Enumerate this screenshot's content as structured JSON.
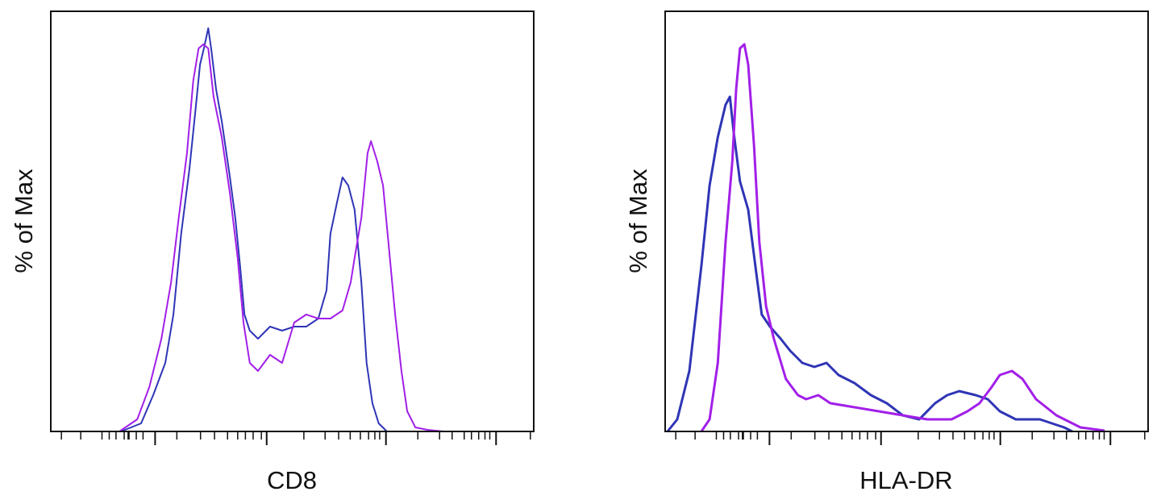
{
  "colors": {
    "blue": "#2f35b5",
    "purple": "#a21fe8",
    "axis": "#111111"
  },
  "chart_data": [
    {
      "type": "line",
      "title": "",
      "xlabel": "CD8",
      "ylabel": "% of Max",
      "xlim": [
        0,
        1000
      ],
      "ylim": [
        0,
        100
      ],
      "grid": false,
      "major_ticks": [
        216,
        447,
        694,
        922
      ],
      "minor_ticks": [
        22,
        62,
        106,
        121,
        135,
        152,
        160,
        162,
        177,
        191,
        261,
        310,
        339,
        366,
        387,
        403,
        419,
        436,
        524,
        568,
        596,
        620,
        641,
        658,
        671,
        681,
        760,
        805,
        831,
        856,
        871,
        886,
        899,
        909,
        993
      ],
      "series": [
        {
          "name": "blue",
          "color": "#2f35b5",
          "x": [
            145,
            187,
            212,
            237,
            254,
            270,
            287,
            299,
            309,
            317,
            326,
            332,
            342,
            354,
            371,
            382,
            392,
            401,
            412,
            429,
            454,
            479,
            504,
            529,
            554,
            571,
            579,
            593,
            604,
            616,
            629,
            643,
            654,
            666,
            679,
            696
          ],
          "y": [
            0,
            2,
            9,
            17,
            29,
            49,
            65,
            79,
            91,
            95,
            100,
            95,
            85,
            77,
            63,
            53,
            41,
            29,
            25,
            23,
            26,
            25,
            26,
            26,
            28,
            35,
            49,
            57,
            63,
            61,
            55,
            37,
            17,
            7,
            2,
            0
          ]
        },
        {
          "name": "purple",
          "color": "#a21fe8",
          "x": [
            142,
            179,
            204,
            229,
            249,
            265,
            282,
            295,
            306,
            316,
            326,
            337,
            354,
            371,
            387,
            399,
            412,
            429,
            454,
            479,
            504,
            529,
            554,
            579,
            604,
            621,
            629,
            643,
            656,
            663,
            676,
            688,
            699,
            713,
            726,
            738,
            755,
            780,
            813
          ],
          "y": [
            0,
            3,
            11,
            23,
            37,
            53,
            69,
            87,
            95,
            96,
            95,
            83,
            73,
            59,
            43,
            27,
            17,
            15,
            19,
            17,
            27,
            29,
            28,
            28,
            30,
            37,
            43,
            53,
            69,
            72,
            67,
            61,
            47,
            29,
            15,
            5,
            1,
            0.4,
            0
          ]
        }
      ]
    },
    {
      "type": "line",
      "title": "",
      "xlabel": "HLA-DR",
      "ylabel": "% of Max",
      "xlim": [
        0,
        1000
      ],
      "ylim": [
        0,
        100
      ],
      "grid": false,
      "major_ticks": [
        216,
        447,
        694,
        922
      ],
      "minor_ticks": [
        22,
        62,
        106,
        121,
        135,
        152,
        160,
        162,
        177,
        191,
        261,
        310,
        339,
        366,
        387,
        403,
        419,
        436,
        524,
        568,
        596,
        620,
        641,
        658,
        671,
        681,
        760,
        805,
        831,
        856,
        871,
        886,
        899,
        909,
        993
      ],
      "series": [
        {
          "name": "blue",
          "color": "#2f35b5",
          "x": [
            5,
            25,
            50,
            75,
            92,
            109,
            125,
            134,
            142,
            155,
            172,
            189,
            200,
            217,
            239,
            259,
            284,
            309,
            334,
            359,
            392,
            426,
            459,
            492,
            526,
            559,
            584,
            609,
            643,
            668,
            693,
            726,
            776,
            826,
            843
          ],
          "y": [
            0,
            3,
            15,
            41,
            61,
            73,
            81,
            83,
            74,
            62,
            55,
            39,
            29,
            26,
            23,
            20,
            17,
            16,
            17,
            14,
            12,
            9,
            7,
            4,
            3,
            7,
            9,
            10,
            9,
            8,
            5,
            3,
            3,
            1,
            0
          ]
        },
        {
          "name": "purple",
          "color": "#a21fe8",
          "x": [
            75,
            92,
            109,
            125,
            139,
            147,
            155,
            164,
            172,
            184,
            195,
            209,
            225,
            250,
            275,
            292,
            317,
            342,
            392,
            442,
            492,
            543,
            593,
            626,
            651,
            676,
            693,
            718,
            740,
            768,
            810,
            860,
            910
          ],
          "y": [
            0,
            3,
            17,
            47,
            67,
            85,
            95,
            96,
            91,
            71,
            47,
            31,
            23,
            13,
            9,
            8,
            9,
            7,
            6,
            5,
            4,
            3,
            3,
            5,
            7,
            11,
            14,
            15,
            13,
            8,
            4,
            1,
            0.2
          ]
        }
      ]
    }
  ]
}
